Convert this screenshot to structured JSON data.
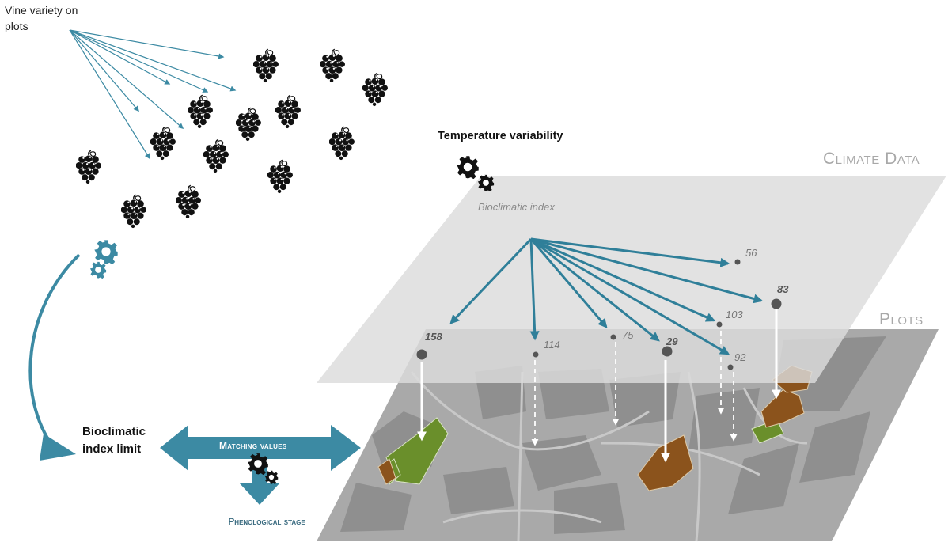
{
  "labels": {
    "vine_variety": "Vine variety on plots",
    "temperature_variability": "Temperature variability",
    "climate_data": "Climate Data",
    "plots": "Plots",
    "bioclimatic_index": "Bioclimatic index",
    "bioclimatic_index_limit": "Bioclimatic index limit",
    "matching_values": "Matching values",
    "phenological_stage": "Phenological stage"
  },
  "index_values": [
    {
      "value": "56",
      "emphasis": "normal"
    },
    {
      "value": "83",
      "emphasis": "bold"
    },
    {
      "value": "103",
      "emphasis": "normal"
    },
    {
      "value": "158",
      "emphasis": "bold"
    },
    {
      "value": "114",
      "emphasis": "normal"
    },
    {
      "value": "75",
      "emphasis": "normal"
    },
    {
      "value": "29",
      "emphasis": "bold"
    },
    {
      "value": "92",
      "emphasis": "normal"
    }
  ],
  "colors": {
    "accent": "#3c8aa3",
    "arrow_blue": "#2f7f99",
    "climate_layer": "#dcdcdc",
    "plots_layer": "#a9a9a9",
    "plot_green": "#6a8f2b",
    "plot_brown": "#8b531c"
  }
}
